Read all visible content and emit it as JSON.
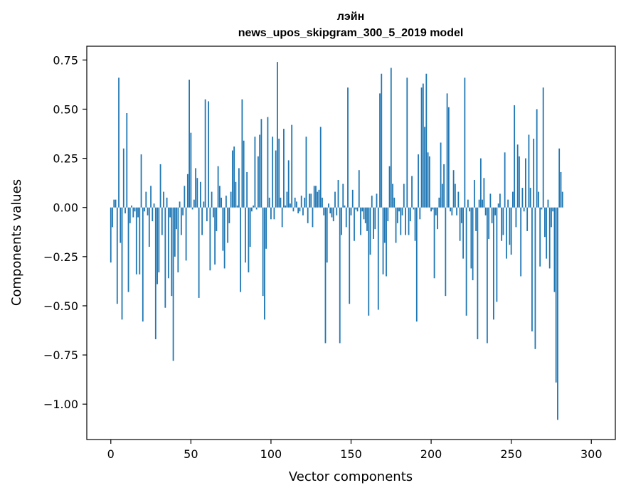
{
  "chart_data": {
    "type": "bar",
    "title_lines": [
      "лэйн",
      "news_upos_skipgram_300_5_2019 model"
    ],
    "xlabel": "Vector components",
    "ylabel": "Components values",
    "xlim": [
      -15,
      315
    ],
    "ylim": [
      -1.18,
      0.82
    ],
    "xticks": [
      0,
      50,
      100,
      150,
      200,
      250,
      300
    ],
    "yticks": [
      0.75,
      0.5,
      0.25,
      0.0,
      -0.25,
      -0.5,
      -0.75,
      -1.0
    ],
    "ytick_labels": [
      "0.75",
      "0.50",
      "0.25",
      "0.00",
      "−0.25",
      "−0.50",
      "−0.75",
      "−1.00"
    ],
    "bar_color": "#1f77b4",
    "values": [
      -0.28,
      -0.1,
      0.04,
      0.04,
      -0.49,
      0.66,
      -0.18,
      -0.57,
      0.3,
      -0.03,
      0.48,
      -0.43,
      -0.08,
      0.01,
      -0.05,
      -0.02,
      -0.34,
      -0.05,
      -0.34,
      0.27,
      -0.58,
      -0.02,
      0.08,
      -0.04,
      -0.2,
      0.11,
      -0.07,
      0.02,
      -0.67,
      -0.39,
      -0.33,
      0.22,
      -0.14,
      0.08,
      -0.51,
      0.05,
      -0.36,
      -0.05,
      -0.45,
      -0.78,
      -0.25,
      -0.11,
      -0.33,
      0.03,
      -0.14,
      -0.04,
      0.11,
      -0.27,
      0.17,
      0.65,
      0.38,
      -0.01,
      0.04,
      0.2,
      0.15,
      -0.46,
      0.13,
      -0.14,
      0.03,
      0.55,
      -0.07,
      0.54,
      -0.32,
      0.08,
      -0.05,
      -0.29,
      -0.12,
      0.21,
      0.11,
      0.05,
      -0.22,
      -0.31,
      0.06,
      -0.18,
      -0.08,
      0.08,
      0.29,
      0.31,
      0.13,
      0.01,
      0.2,
      -0.43,
      0.55,
      0.34,
      -0.28,
      0.18,
      -0.33,
      -0.2,
      -0.02,
      0.01,
      0.36,
      -0.01,
      0.26,
      0.37,
      0.45,
      -0.45,
      -0.57,
      -0.21,
      0.46,
      0.05,
      -0.06,
      0.36,
      -0.06,
      0.29,
      0.74,
      0.35,
      0.05,
      -0.1,
      0.4,
      0.01,
      0.08,
      0.24,
      0.02,
      0.42,
      -0.02,
      0.05,
      0.03,
      -0.03,
      -0.02,
      0.06,
      -0.04,
      0.05,
      0.36,
      -0.08,
      0.07,
      0.07,
      -0.1,
      0.11,
      0.11,
      0.08,
      0.09,
      0.41,
      0.05,
      -0.04,
      -0.69,
      -0.28,
      0.02,
      -0.03,
      -0.05,
      -0.07,
      0.08,
      -0.04,
      0.14,
      -0.69,
      -0.14,
      0.12,
      0.01,
      -0.1,
      0.61,
      -0.49,
      -0.04,
      0.09,
      -0.17,
      -0.01,
      -0.02,
      0.19,
      -0.14,
      -0.02,
      -0.06,
      -0.08,
      -0.12,
      -0.55,
      -0.24,
      0.06,
      -0.16,
      -0.11,
      0.07,
      -0.52,
      0.58,
      0.68,
      -0.34,
      -0.18,
      -0.35,
      -0.07,
      0.21,
      0.71,
      0.12,
      0.05,
      -0.18,
      -0.08,
      -0.02,
      -0.14,
      -0.04,
      0.12,
      -0.14,
      0.66,
      -0.14,
      -0.07,
      0.16,
      -0.01,
      -0.17,
      -0.58,
      0.27,
      -0.06,
      0.61,
      0.63,
      0.41,
      0.68,
      0.28,
      0.26,
      -0.02,
      -0.01,
      -0.36,
      -0.04,
      -0.11,
      0.05,
      0.33,
      0.12,
      0.22,
      -0.45,
      0.58,
      0.51,
      -0.02,
      -0.04,
      0.19,
      0.12,
      -0.04,
      0.08,
      -0.17,
      -0.08,
      -0.26,
      0.66,
      -0.55,
      0.04,
      -0.02,
      -0.31,
      -0.37,
      0.14,
      -0.12,
      -0.67,
      0.04,
      0.25,
      0.04,
      0.15,
      -0.04,
      -0.69,
      -0.16,
      0.07,
      -0.08,
      -0.57,
      -0.04,
      -0.48,
      0.02,
      0.07,
      -0.17,
      -0.14,
      0.28,
      -0.26,
      0.04,
      -0.19,
      -0.24,
      0.08,
      0.52,
      -0.1,
      0.32,
      0.26,
      -0.35,
      0.1,
      -0.02,
      0.25,
      -0.12,
      0.37,
      0.1,
      -0.63,
      0.35,
      -0.72,
      0.5,
      0.08,
      -0.3,
      -0.01,
      0.61,
      -0.15,
      -0.26,
      0.04,
      -0.31,
      -0.1,
      -0.02,
      -0.43,
      -0.89,
      -1.08,
      0.3,
      0.18,
      0.08
    ]
  }
}
